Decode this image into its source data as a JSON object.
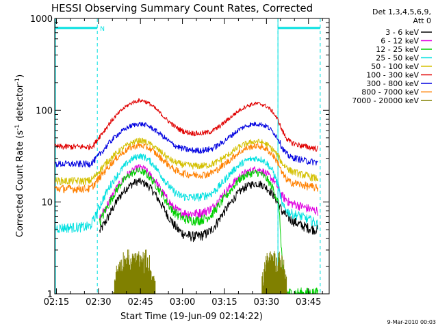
{
  "chart_data": {
    "type": "line",
    "title": "HESSI Observing Summary Count Rates, Corrected",
    "xlabel": "Start Time (19-Jun-09 02:14:22)",
    "ylabel": "Corrected Count Rate (s",
    "ylabel_sup": "-1",
    "ylabel_mid": " detector",
    "ylabel_sup2": "-1",
    "ylabel_end": ")",
    "yscale": "log",
    "ylim": [
      1,
      1000
    ],
    "xlim_min": [
      0,
      98
    ],
    "x_unit": "minutes after 02:14:22",
    "x_ticks": [
      "02:15",
      "02:30",
      "02:45",
      "03:00",
      "03:15",
      "03:30",
      "03:45"
    ],
    "x_tick_minutes": [
      0.6,
      15.6,
      30.6,
      45.6,
      60.6,
      75.6,
      90.6
    ],
    "y_ticks": [
      "1",
      "10",
      "100",
      "1000"
    ],
    "y_tick_values": [
      1,
      10,
      100,
      1000
    ],
    "legend_header": [
      "Det 1,3,4,5,6,9,",
      "Att 0"
    ],
    "legend_position": "right",
    "date_stamp": "9-Mar-2010 00:03",
    "night_marks": [
      {
        "start": 0,
        "end": 15.2
      },
      {
        "start": 79.7,
        "end": 94.8
      }
    ],
    "night_label": "N",
    "x": [
      0,
      12,
      12.5,
      14,
      16,
      18,
      20,
      22,
      24,
      26,
      28,
      30,
      32,
      34,
      36,
      38,
      40,
      42,
      44,
      46,
      48,
      50,
      52,
      54,
      56,
      58,
      60,
      62,
      64,
      66,
      68,
      70,
      72,
      74,
      76,
      78,
      80,
      81,
      82,
      83,
      83.5,
      84,
      86,
      88,
      90,
      92,
      94,
      95
    ],
    "series": [
      {
        "name": "3 - 6 keV",
        "color": "#000000",
        "values": [
          null,
          null,
          null,
          null,
          4.8,
          6,
          7.8,
          10,
          12.5,
          14.5,
          16,
          17,
          16,
          14.5,
          12,
          9.5,
          7.5,
          6,
          5,
          4.5,
          4.3,
          4.2,
          4.3,
          4.5,
          5,
          6,
          7.5,
          9,
          11,
          13,
          14.5,
          15.5,
          16,
          15.5,
          14,
          12,
          9.5,
          8,
          7.5,
          7,
          6.8,
          6.5,
          6,
          5.6,
          5.3,
          5.1,
          5,
          null
        ]
      },
      {
        "name": "6 - 12 keV",
        "color": "#e000e0",
        "values": [
          null,
          null,
          null,
          null,
          6.5,
          8.5,
          11,
          14,
          17,
          20,
          22,
          24,
          23,
          20,
          17,
          13.5,
          11,
          9,
          8,
          7.6,
          7.5,
          7.5,
          7.6,
          8,
          8.5,
          10,
          12,
          14,
          16.5,
          19,
          21,
          22,
          23,
          22,
          20,
          17.5,
          14,
          12,
          11,
          10.5,
          10,
          9.8,
          9.4,
          9,
          8.6,
          8.2,
          8,
          null
        ]
      },
      {
        "name": "12 - 25 keV",
        "color": "#00d000",
        "values": [
          null,
          null,
          null,
          null,
          6,
          8,
          10.5,
          13.5,
          16.5,
          19,
          21,
          22,
          21,
          18.5,
          15.5,
          12.5,
          10,
          8.2,
          7.2,
          6.6,
          6.4,
          6.3,
          6.4,
          6.7,
          7.3,
          8.7,
          10.5,
          12.5,
          15,
          17.5,
          19.5,
          20.5,
          21,
          20,
          17.5,
          14,
          9.5,
          3,
          1,
          1,
          1,
          1,
          1,
          1,
          1,
          1,
          1,
          null
        ]
      },
      {
        "name": "25 - 50 keV",
        "color": "#00e0e0",
        "values": [
          5.2,
          5.4,
          5.4,
          6.5,
          9,
          12,
          15.5,
          19,
          23,
          27,
          30,
          32,
          31,
          28,
          24,
          19.5,
          16,
          13.5,
          12,
          11.5,
          11.3,
          11.3,
          11.4,
          11.8,
          12.5,
          14,
          16.5,
          19.5,
          22.5,
          25.5,
          28,
          29.5,
          30,
          29,
          26,
          21.5,
          14.5,
          10,
          8.5,
          8,
          7.8,
          7.6,
          7.3,
          7,
          6.6,
          6.2,
          5.7,
          null
        ]
      },
      {
        "name": "50 - 100 keV",
        "color": "#d4c000",
        "values": [
          17,
          17,
          17,
          18.5,
          22,
          26,
          30,
          34,
          38,
          42,
          45,
          47,
          46,
          43,
          39,
          35,
          31,
          28,
          26.5,
          25.5,
          25,
          24.8,
          24.8,
          25,
          25.8,
          27.5,
          30,
          33,
          36.5,
          40,
          43,
          45,
          46,
          45,
          42,
          37,
          31,
          27,
          25,
          24,
          23,
          22,
          21,
          20,
          19.5,
          18.5,
          18,
          null
        ]
      },
      {
        "name": "100 - 300 keV",
        "color": "#e00000",
        "values": [
          40,
          40,
          40,
          42,
          52,
          62,
          75,
          88,
          101,
          113,
          122,
          128,
          126,
          117,
          104,
          91,
          79,
          70,
          63,
          59,
          57,
          56,
          56,
          57,
          59,
          64,
          71,
          80,
          90,
          100,
          109,
          115,
          118,
          116,
          109,
          95,
          75,
          62,
          54,
          49,
          47,
          45,
          43,
          41,
          40,
          39,
          38,
          null
        ]
      },
      {
        "name": "300 - 800 keV",
        "color": "#0000e0",
        "values": [
          26,
          26,
          26,
          28,
          33,
          39,
          46,
          53,
          59,
          65,
          69,
          71,
          70,
          66,
          60,
          54,
          48,
          43,
          40,
          38,
          37,
          36.5,
          36.5,
          37,
          38,
          41,
          45,
          50,
          56,
          62,
          67,
          70,
          71,
          70,
          66,
          58,
          48,
          40,
          36,
          33,
          32,
          31,
          30,
          29,
          28,
          27.5,
          27,
          null
        ]
      },
      {
        "name": "800 - 7000 keV",
        "color": "#ff8000",
        "values": [
          14,
          14,
          14,
          15.5,
          18.5,
          22,
          26,
          30,
          34,
          37.5,
          40,
          41.5,
          40.5,
          38,
          34,
          30,
          26.5,
          23.5,
          21.5,
          20.5,
          20,
          19.8,
          19.8,
          20,
          20.8,
          22.5,
          25,
          28,
          31.5,
          35,
          38,
          40,
          41,
          40,
          37,
          32,
          26,
          21,
          19,
          17.5,
          17,
          16.5,
          16,
          15.5,
          15,
          14.6,
          14.2,
          null
        ]
      },
      {
        "name": "7000 - 20000 keV",
        "color": "#808000",
        "values": [
          null,
          null,
          null,
          null,
          null,
          null,
          null,
          null,
          null,
          null,
          null,
          null,
          null,
          null,
          null,
          null,
          null,
          null,
          null,
          null,
          null,
          null,
          null,
          null,
          null,
          null,
          null,
          null,
          null,
          null,
          null,
          null,
          null,
          null,
          null,
          null,
          null,
          null,
          null,
          null,
          null,
          null,
          null,
          null,
          null,
          null,
          null,
          null
        ],
        "bursts": [
          {
            "start": 21,
            "end": 36,
            "level": 1.6,
            "peak": 3.2
          },
          {
            "start": 74,
            "end": 83,
            "level": 1.6,
            "peak": 3.2
          }
        ]
      }
    ]
  }
}
